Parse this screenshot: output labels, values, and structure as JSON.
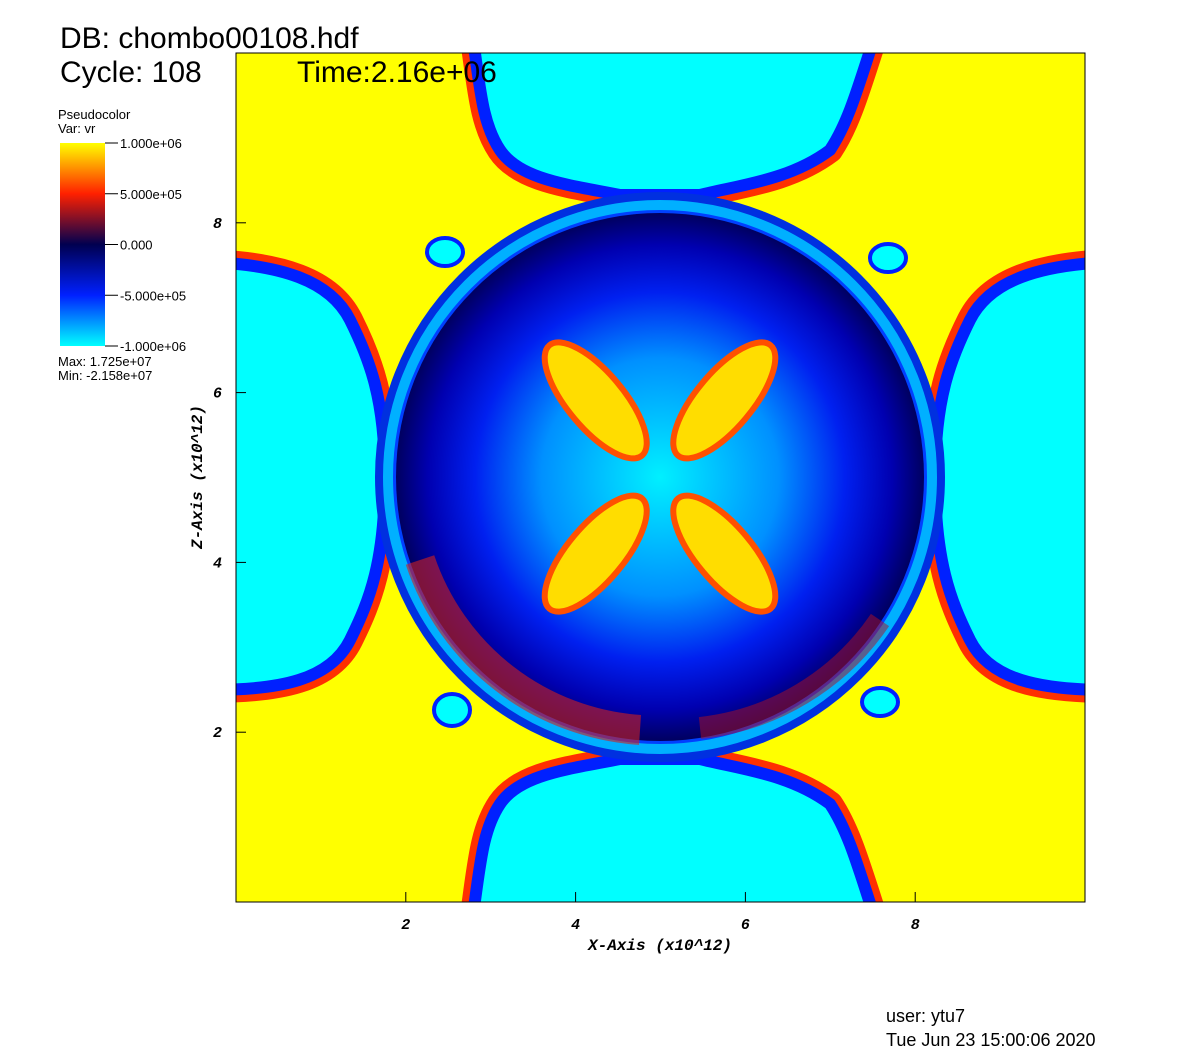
{
  "chart_data": {
    "type": "pseudocolor",
    "title": "DB: chombo00108.hdf",
    "cycle": "Cycle: 108",
    "time": "Time:2.16e+06",
    "legend": {
      "title": "Pseudocolor",
      "variable": "Var: vr",
      "lim": [
        -1000000,
        1000000
      ],
      "ticks": [
        {
          "value": 1000000,
          "label": "1.000e+06"
        },
        {
          "value": 500000,
          "label": "5.000e+05"
        },
        {
          "value": 0,
          "label": "0.000"
        },
        {
          "value": -500000,
          "label": "-5.000e+05"
        },
        {
          "value": -1000000,
          "label": "-1.000e+06"
        }
      ],
      "colors": [
        "#00ffff",
        "#0020ff",
        "#000050",
        "#ff2000",
        "#ffff00"
      ],
      "max": "Max:  1.725e+07",
      "min": "Min: -2.158e+07"
    },
    "xlabel": "X-Axis (x10^12)",
    "ylabel": "Z-Axis (x10^12)",
    "xlim": [
      0,
      10
    ],
    "ylim": [
      0,
      10
    ],
    "xticks": [
      2,
      4,
      6,
      8
    ],
    "yticks": [
      2,
      4,
      6,
      8
    ],
    "user": "user: ytu7",
    "date": "Tue Jun 23 15:00:06 2020"
  }
}
